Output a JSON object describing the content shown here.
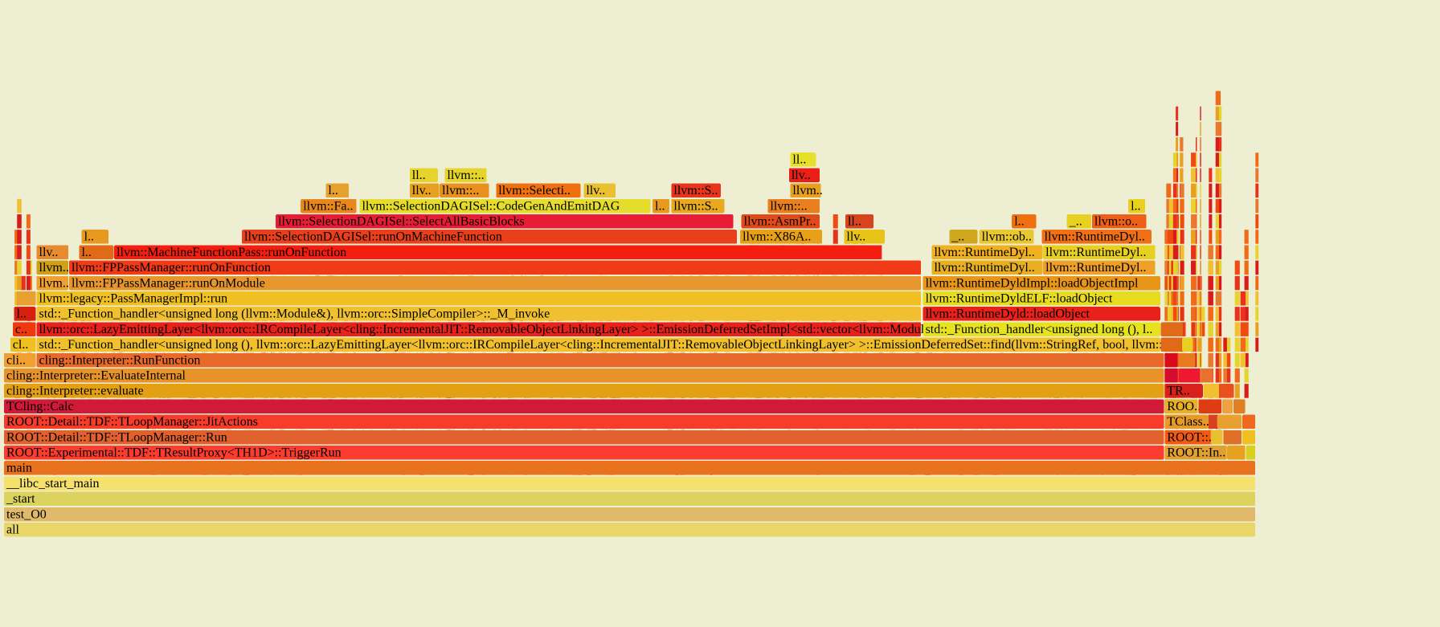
{
  "chart_data": {
    "type": "flamegraph",
    "frames": [
      {
        "label": "all",
        "x0": 0,
        "x1": 100,
        "depth": 0,
        "color": "#e8d768",
        "faded": true
      },
      {
        "label": "test_O0",
        "x0": 0,
        "x1": 100,
        "depth": 1,
        "color": "#e0b96a",
        "faded": true
      },
      {
        "label": "_start",
        "x0": 0,
        "x1": 100,
        "depth": 2,
        "color": "#dcd35e",
        "faded": true
      },
      {
        "label": "__libc_start_main",
        "x0": 0,
        "x1": 100,
        "depth": 3,
        "color": "#f5e26e",
        "faded": true
      },
      {
        "label": "main",
        "x0": 0,
        "x1": 100,
        "depth": 4,
        "color": "#e8721e"
      },
      {
        "label": "ROOT::Experimental::TDF::TResultProxy<TH1D>::TriggerRun",
        "x0": 0,
        "x1": 92.7,
        "depth": 5,
        "color": "#fb3c2e"
      },
      {
        "label": "ROOT::In..",
        "x0": 92.7,
        "x1": 97.7,
        "depth": 5,
        "color": "#e0a032"
      },
      {
        "label": "",
        "x0": 97.7,
        "x1": 99.2,
        "depth": 5,
        "color": "#e8a020"
      },
      {
        "label": "",
        "x0": 99.2,
        "x1": 100,
        "depth": 5,
        "color": "#d8d020"
      },
      {
        "label": "ROOT::Detail::TDF::TLoopManager::Run",
        "x0": 0,
        "x1": 92.7,
        "depth": 6,
        "color": "#e0602e"
      },
      {
        "label": "ROOT::..",
        "x0": 92.7,
        "x1": 96.4,
        "depth": 6,
        "color": "#f05a14"
      },
      {
        "label": "",
        "x0": 96.4,
        "x1": 97.4,
        "depth": 6,
        "color": "#e8c030"
      },
      {
        "label": "",
        "x0": 97.4,
        "x1": 98.9,
        "depth": 6,
        "color": "#e07028"
      },
      {
        "label": "",
        "x0": 98.9,
        "x1": 100,
        "depth": 6,
        "color": "#f0c020"
      },
      {
        "label": "ROOT::Detail::TDF::TLoopManager::JitActions",
        "x0": 0,
        "x1": 92.7,
        "depth": 7,
        "color": "#f83c2c"
      },
      {
        "label": "TClass..",
        "x0": 92.7,
        "x1": 96.2,
        "depth": 7,
        "color": "#e89a28"
      },
      {
        "label": "",
        "x0": 96.2,
        "x1": 96.9,
        "depth": 7,
        "color": "#d84020"
      },
      {
        "label": "",
        "x0": 96.9,
        "x1": 98.9,
        "depth": 7,
        "color": "#e8a030"
      },
      {
        "label": "",
        "x0": 98.9,
        "x1": 100,
        "depth": 7,
        "color": "#f06820"
      },
      {
        "label": "TCling::Calc",
        "x0": 0,
        "x1": 92.7,
        "depth": 8,
        "color": "#d01a38"
      },
      {
        "label": "ROO..",
        "x0": 92.7,
        "x1": 95.4,
        "depth": 8,
        "color": "#e8b024"
      },
      {
        "label": "",
        "x0": 95.4,
        "x1": 97.3,
        "depth": 8,
        "color": "#e03c14"
      },
      {
        "label": "",
        "x0": 97.3,
        "x1": 98.2,
        "depth": 8,
        "color": "#f0a040"
      },
      {
        "label": "",
        "x0": 98.2,
        "x1": 99.2,
        "depth": 8,
        "color": "#e08020"
      },
      {
        "label": "cling::Interpreter::evaluate",
        "x0": 0,
        "x1": 92.7,
        "depth": 9,
        "color": "#e4a014"
      },
      {
        "label": "TR..",
        "x0": 92.7,
        "x1": 95.8,
        "depth": 9,
        "color": "#d8201c"
      },
      {
        "label": "",
        "x0": 95.8,
        "x1": 97.1,
        "depth": 9,
        "color": "#f0c030"
      },
      {
        "label": "",
        "x0": 97.1,
        "x1": 98.3,
        "depth": 9,
        "color": "#e85020"
      },
      {
        "label": "cling::Interpreter::EvaluateInternal",
        "x0": 0,
        "x1": 92.7,
        "depth": 10,
        "color": "#e8922a"
      },
      {
        "label": "",
        "x0": 92.7,
        "x1": 93.8,
        "depth": 10,
        "color": "#d80a30"
      },
      {
        "label": "",
        "x0": 93.8,
        "x1": 95.6,
        "depth": 10,
        "color": "#f01830"
      },
      {
        "label": "",
        "x0": 95.6,
        "x1": 96.6,
        "depth": 10,
        "color": "#e87030"
      },
      {
        "label": "cli..",
        "x0": 0,
        "x1": 2.6,
        "depth": 11,
        "color": "#f0a030"
      },
      {
        "label": "cling::Interpreter::RunFunction",
        "x0": 2.6,
        "x1": 92.7,
        "depth": 11,
        "color": "#e86a2a"
      },
      {
        "label": "",
        "x0": 92.7,
        "x1": 93.8,
        "depth": 11,
        "color": "#d80a1e"
      },
      {
        "label": "",
        "x0": 93.8,
        "x1": 95.2,
        "depth": 11,
        "color": "#e87a20"
      },
      {
        "label": "cl..",
        "x0": 0.5,
        "x1": 2.6,
        "depth": 12,
        "color": "#f0c020"
      },
      {
        "label": "std::_Function_handler<unsigned long (), llvm::orc::LazyEmittingLayer<llvm::orc::IRCompileLayer<cling::IncrementalJIT::RemovableObjectLinkingLayer> >::EmissionDeferredSet::find(llvm::StringRef, bool, llvm::o..",
        "x0": 2.6,
        "x1": 92.4,
        "depth": 12,
        "color": "#f2c02c"
      },
      {
        "label": "",
        "x0": 92.4,
        "x1": 94.1,
        "depth": 12,
        "color": "#e06a18"
      },
      {
        "label": "",
        "x0": 94.1,
        "x1": 95.0,
        "depth": 12,
        "color": "#e8d020"
      },
      {
        "label": "c..",
        "x0": 0.7,
        "x1": 2.6,
        "depth": 13,
        "color": "#f03810"
      },
      {
        "label": "llvm::orc::LazyEmittingLayer<llvm::orc::IRCompileLayer<cling::IncrementalJIT::RemovableObjectLinkingLayer> >::EmissionDeferredSetImpl<std::vector<llvm::Modul..",
        "x0": 2.6,
        "x1": 73.3,
        "depth": 13,
        "color": "#e8221a"
      },
      {
        "label": "std::_Function_handler<unsigned long (), l..",
        "x0": 73.4,
        "x1": 92.4,
        "depth": 13,
        "color": "#e6e21e"
      },
      {
        "label": "",
        "x0": 92.4,
        "x1": 94.2,
        "depth": 13,
        "color": "#e06a18"
      },
      {
        "label": "l..",
        "x0": 0.8,
        "x1": 2.6,
        "depth": 14,
        "color": "#d82010"
      },
      {
        "label": "std::_Function_handler<unsigned long (llvm::Module&), llvm::orc::SimpleCompiler>::_M_invoke",
        "x0": 2.6,
        "x1": 73.3,
        "depth": 14,
        "color": "#f0c030"
      },
      {
        "label": "llvm::RuntimeDyld::loadObject",
        "x0": 73.4,
        "x1": 92.4,
        "depth": 14,
        "color": "#e8221a"
      },
      {
        "label": "",
        "x0": 1.0,
        "x1": 2.6,
        "depth": 15,
        "color": "#e8a030"
      },
      {
        "label": "llvm::legacy::PassManagerImpl::run",
        "x0": 2.6,
        "x1": 73.3,
        "depth": 15,
        "color": "#f0c020"
      },
      {
        "label": "llvm::RuntimeDyldELF::loadObject",
        "x0": 73.4,
        "x1": 92.4,
        "depth": 15,
        "color": "#e8dc20"
      },
      {
        "label": "llvm..",
        "x0": 2.6,
        "x1": 5.2,
        "depth": 16,
        "color": "#f0a030"
      },
      {
        "label": "llvm::FPPassManager::runOnModule",
        "x0": 5.2,
        "x1": 73.3,
        "depth": 16,
        "color": "#e6962c"
      },
      {
        "label": "llvm::RuntimeDyldImpl::loadObjectImpl",
        "x0": 73.4,
        "x1": 92.4,
        "depth": 16,
        "color": "#e8961a"
      },
      {
        "label": "llvm..",
        "x0": 2.6,
        "x1": 5.2,
        "depth": 17,
        "color": "#d0a018"
      },
      {
        "label": "llvm::FPPassManager::runOnFunction",
        "x0": 5.2,
        "x1": 73.3,
        "depth": 17,
        "color": "#f03a18"
      },
      {
        "label": "llvm::RuntimeDyl..",
        "x0": 74.1,
        "x1": 83.0,
        "depth": 17,
        "color": "#e8b020"
      },
      {
        "label": "llvm::RuntimeDyl..",
        "x0": 83.0,
        "x1": 92.0,
        "depth": 17,
        "color": "#f0a028"
      },
      {
        "label": "llv..",
        "x0": 2.6,
        "x1": 5.2,
        "depth": 18,
        "color": "#e88a30"
      },
      {
        "label": "l..",
        "x0": 6.0,
        "x1": 8.8,
        "depth": 18,
        "color": "#e06a18"
      },
      {
        "label": "llvm::MachineFunctionPass::runOnFunction",
        "x0": 8.8,
        "x1": 70.1,
        "depth": 18,
        "color": "#f41e10"
      },
      {
        "label": "llvm::RuntimeDyl..",
        "x0": 74.1,
        "x1": 83.0,
        "depth": 18,
        "color": "#f0b020"
      },
      {
        "label": "llvm::RuntimeDyl..",
        "x0": 83.0,
        "x1": 92.0,
        "depth": 18,
        "color": "#e8d020"
      },
      {
        "label": "l..",
        "x0": 6.2,
        "x1": 8.4,
        "depth": 19,
        "color": "#e89a20"
      },
      {
        "label": "llvm::SelectionDAGISel::runOnMachineFunction",
        "x0": 19.0,
        "x1": 58.6,
        "depth": 19,
        "color": "#e8401c"
      },
      {
        "label": "llvm::X86A..",
        "x0": 58.8,
        "x1": 65.4,
        "depth": 19,
        "color": "#e8a018"
      },
      {
        "label": "llv..",
        "x0": 67.1,
        "x1": 70.4,
        "depth": 19,
        "color": "#e8c418"
      },
      {
        "label": "_..",
        "x0": 75.5,
        "x1": 77.8,
        "depth": 19,
        "color": "#d0a820"
      },
      {
        "label": "llvm::ob..",
        "x0": 77.9,
        "x1": 82.3,
        "depth": 19,
        "color": "#e8c830"
      },
      {
        "label": "llvm::RuntimeDyl..",
        "x0": 82.9,
        "x1": 91.7,
        "depth": 19,
        "color": "#f07018"
      },
      {
        "label": "llvm::SelectionDAGISel::SelectAllBasicBlocks",
        "x0": 21.7,
        "x1": 58.3,
        "depth": 20,
        "color": "#e81c34"
      },
      {
        "label": "llvm::AsmPr..",
        "x0": 58.9,
        "x1": 65.2,
        "depth": 20,
        "color": "#e04a1a"
      },
      {
        "label": "ll..",
        "x0": 67.2,
        "x1": 69.5,
        "depth": 20,
        "color": "#d8441c"
      },
      {
        "label": "l..",
        "x0": 80.5,
        "x1": 82.5,
        "depth": 20,
        "color": "#f07010"
      },
      {
        "label": "_..",
        "x0": 84.9,
        "x1": 86.9,
        "depth": 20,
        "color": "#e8d020"
      },
      {
        "label": "llvm::o..",
        "x0": 86.9,
        "x1": 91.3,
        "depth": 20,
        "color": "#ee6018"
      },
      {
        "label": "llvm::Fa..",
        "x0": 23.7,
        "x1": 28.2,
        "depth": 21,
        "color": "#e8881c"
      },
      {
        "label": "llvm::SelectionDAGISel::CodeGenAndEmitDAG",
        "x0": 28.4,
        "x1": 51.7,
        "depth": 21,
        "color": "#e6dc2c"
      },
      {
        "label": "l..",
        "x0": 51.8,
        "x1": 53.2,
        "depth": 21,
        "color": "#e89a20"
      },
      {
        "label": "llvm::S..",
        "x0": 53.3,
        "x1": 57.6,
        "depth": 21,
        "color": "#e8a820"
      },
      {
        "label": "llvm::..",
        "x0": 61.0,
        "x1": 65.2,
        "depth": 21,
        "color": "#e88020"
      },
      {
        "label": "l..",
        "x0": 89.8,
        "x1": 91.2,
        "depth": 21,
        "color": "#e8d020"
      },
      {
        "label": "l..",
        "x0": 25.7,
        "x1": 27.6,
        "depth": 22,
        "color": "#e8a030"
      },
      {
        "label": "llv..",
        "x0": 32.4,
        "x1": 34.8,
        "depth": 22,
        "color": "#e8a020"
      },
      {
        "label": "llvm::..",
        "x0": 34.8,
        "x1": 38.8,
        "depth": 22,
        "color": "#e89020"
      },
      {
        "label": "llvm::Selecti..",
        "x0": 39.3,
        "x1": 46.1,
        "depth": 22,
        "color": "#f07010"
      },
      {
        "label": "llv..",
        "x0": 46.3,
        "x1": 48.9,
        "depth": 22,
        "color": "#e8c030"
      },
      {
        "label": "llvm::S..",
        "x0": 53.3,
        "x1": 57.3,
        "depth": 22,
        "color": "#e8341c"
      },
      {
        "label": "llvm..",
        "x0": 62.8,
        "x1": 65.3,
        "depth": 22,
        "color": "#e8a020"
      },
      {
        "label": "ll..",
        "x0": 32.4,
        "x1": 34.7,
        "depth": 23,
        "color": "#e6d42c"
      },
      {
        "label": "llvm::..",
        "x0": 35.2,
        "x1": 38.6,
        "depth": 23,
        "color": "#e6d42c"
      },
      {
        "label": "llv..",
        "x0": 62.7,
        "x1": 65.2,
        "depth": 23,
        "color": "#e82018"
      },
      {
        "label": "ll..",
        "x0": 62.8,
        "x1": 64.9,
        "depth": 24,
        "color": "#e6e02a"
      }
    ]
  }
}
